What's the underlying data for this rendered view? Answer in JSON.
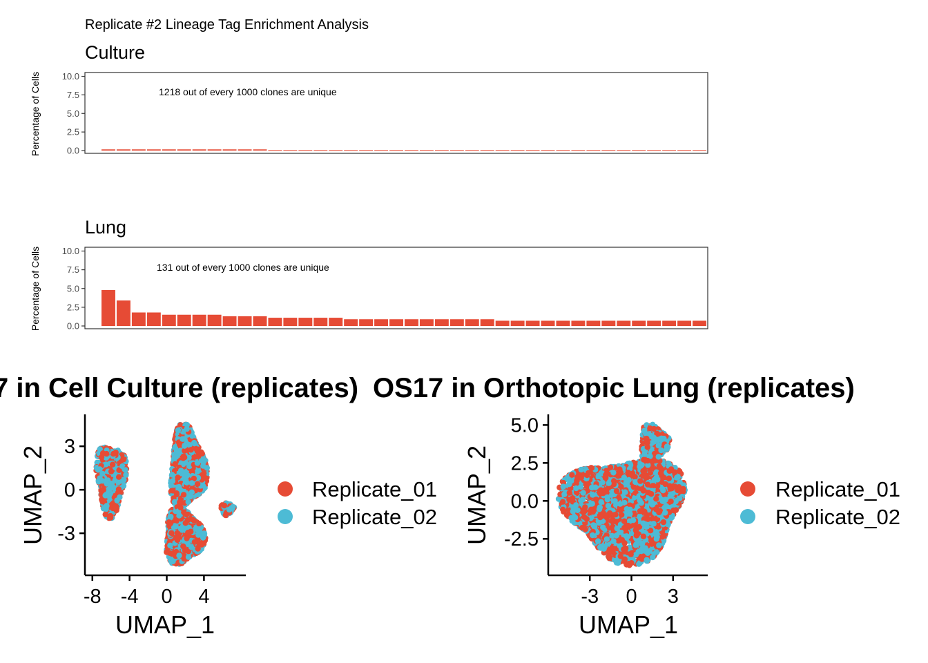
{
  "page_title": "Replicate #2 Lineage Tag Enrichment Analysis",
  "colors": {
    "replicate_01": "#E64B35",
    "replicate_02": "#4DBBD5",
    "bar": "#E64B35"
  },
  "chart_data": [
    {
      "type": "bar",
      "title": "Culture",
      "ylabel": "Percentage of Cells",
      "ylim": [
        0,
        10
      ],
      "yticks": [
        "0.0",
        "2.5",
        "5.0",
        "7.5",
        "10.0"
      ],
      "annotation": "1218 out of every 1000 clones are unique",
      "values": [
        0.16,
        0.16,
        0.16,
        0.16,
        0.16,
        0.16,
        0.16,
        0.16,
        0.16,
        0.16,
        0.16,
        0.08,
        0.08,
        0.08,
        0.08,
        0.08,
        0.08,
        0.08,
        0.08,
        0.08,
        0.08,
        0.08,
        0.08,
        0.08,
        0.08,
        0.08,
        0.08,
        0.08,
        0.08,
        0.08,
        0.08,
        0.08,
        0.08,
        0.08,
        0.08,
        0.08,
        0.08,
        0.08,
        0.08,
        0.08
      ]
    },
    {
      "type": "bar",
      "title": "Lung",
      "ylabel": "Percentage of Cells",
      "ylim": [
        0,
        10
      ],
      "yticks": [
        "0.0",
        "2.5",
        "5.0",
        "7.5",
        "10.0"
      ],
      "annotation": "131 out of every 1000 clones are unique",
      "values": [
        4.8,
        3.4,
        1.8,
        1.8,
        1.5,
        1.5,
        1.5,
        1.5,
        1.3,
        1.3,
        1.3,
        1.1,
        1.1,
        1.1,
        1.1,
        1.1,
        0.9,
        0.9,
        0.9,
        0.9,
        0.9,
        0.9,
        0.9,
        0.9,
        0.9,
        0.9,
        0.7,
        0.7,
        0.7,
        0.7,
        0.7,
        0.7,
        0.7,
        0.7,
        0.7,
        0.7,
        0.7,
        0.7,
        0.7,
        0.7
      ]
    },
    {
      "type": "scatter",
      "title": "7 in Cell Culture (replicates)",
      "xlabel": "UMAP_1",
      "ylabel": "UMAP_2",
      "xlim": [
        -8.8,
        8.5
      ],
      "ylim": [
        -5.9,
        5.2
      ],
      "xticks": [
        -8,
        -4,
        0,
        4
      ],
      "yticks": [
        -3,
        0,
        3
      ],
      "legend": [
        "Replicate_01",
        "Replicate_02"
      ],
      "clusters": [
        {
          "cx": -6.0,
          "cy": 0.8,
          "rx": 1.8,
          "ry": 2.8,
          "n": 650
        },
        {
          "cx": 2.2,
          "cy": 1.5,
          "rx": 2.2,
          "ry": 3.2,
          "n": 1300
        },
        {
          "cx": 1.8,
          "cy": -3.2,
          "rx": 2.4,
          "ry": 2.2,
          "n": 800
        },
        {
          "cx": 6.5,
          "cy": -1.3,
          "rx": 0.8,
          "ry": 0.5,
          "n": 90
        }
      ]
    },
    {
      "type": "scatter",
      "title": "OS17 in Orthotopic Lung (replicates)",
      "xlabel": "UMAP_1",
      "ylabel": "UMAP_2",
      "xlim": [
        -6.0,
        5.5
      ],
      "ylim": [
        -4.9,
        5.7
      ],
      "xticks": [
        -3,
        0,
        3
      ],
      "yticks": [
        -2.5,
        0.0,
        2.5,
        5.0
      ],
      "ytick_labels": [
        "-2.5",
        "0.0",
        "2.5",
        "5.0"
      ],
      "legend": [
        "Replicate_01",
        "Replicate_02"
      ],
      "clusters": [
        {
          "cx": -0.5,
          "cy": -0.4,
          "rx": 5.0,
          "ry": 3.9,
          "n": 3000
        },
        {
          "cx": 1.6,
          "cy": 3.8,
          "rx": 1.2,
          "ry": 1.4,
          "n": 300
        }
      ]
    }
  ]
}
